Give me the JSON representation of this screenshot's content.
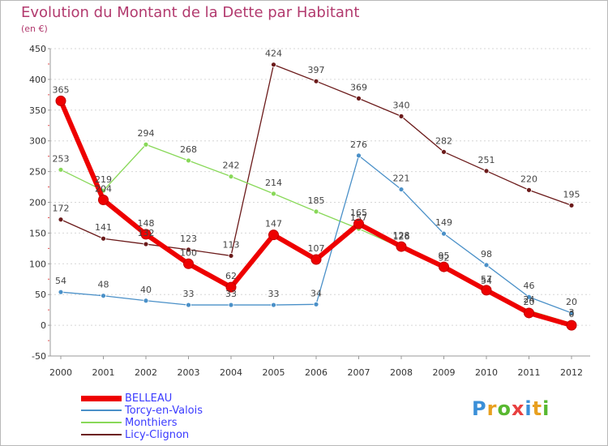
{
  "chart_data": {
    "type": "line",
    "title": "Evolution du Montant de la Dette par Habitant",
    "unit_label": "(en €)",
    "x": [
      "2000",
      "2001",
      "2002",
      "2003",
      "2004",
      "2005",
      "2006",
      "2007",
      "2008",
      "2009",
      "2010",
      "2011",
      "2012"
    ],
    "ylim": [
      -50,
      450
    ],
    "yticks": [
      -50,
      0,
      50,
      100,
      150,
      200,
      250,
      300,
      350,
      400,
      450
    ],
    "grid": "horizontal dashed",
    "legend_position": "bottom-left",
    "series": [
      {
        "name": "BELLEAU",
        "color": "#ee0000",
        "values": [
          365,
          204,
          148,
          100,
          62,
          147,
          107,
          165,
          128,
          95,
          57,
          20,
          0
        ]
      },
      {
        "name": "Torcy-en-Valois",
        "color": "#4a90c8",
        "values": [
          54,
          48,
          40,
          33,
          33,
          33,
          34,
          276,
          221,
          149,
          98,
          46,
          20
        ]
      },
      {
        "name": "Monthiers",
        "color": "#88d858",
        "values": [
          253,
          219,
          294,
          268,
          242,
          214,
          185,
          157,
          126,
          92,
          54,
          24,
          3
        ]
      },
      {
        "name": "Licy-Clignon",
        "color": "#6b1a1a",
        "values": [
          172,
          141,
          132,
          123,
          113,
          424,
          397,
          369,
          340,
          282,
          251,
          220,
          195
        ]
      }
    ]
  },
  "logo": {
    "letters": [
      "P",
      "r",
      "o",
      "x",
      "i",
      "t",
      "i"
    ],
    "colors": [
      "#3a8fd8",
      "#e8a020",
      "#58b830",
      "#e84040",
      "#3a8fd8",
      "#e8a020",
      "#58b830"
    ]
  }
}
